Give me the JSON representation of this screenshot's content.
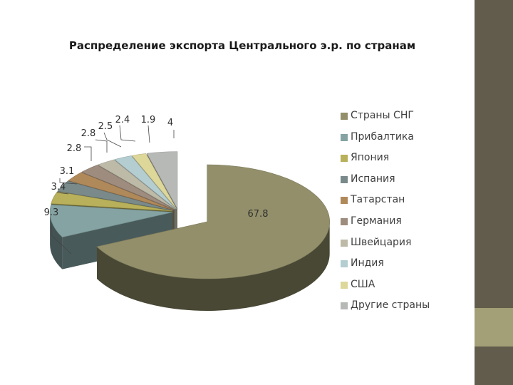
{
  "colors": {
    "side_bar": "#615c4b",
    "side_band": "#a39f76"
  },
  "chart_data": {
    "type": "pie",
    "title": "Распределение экспорта Центрального э.р. по странам",
    "legend_position": "right",
    "categories": [
      "Страны СНГ",
      "Прибалтика",
      "Япония",
      "Испания",
      "Татарстан",
      "Германия",
      "Швейцария",
      "Индия",
      "США",
      "Другие страны"
    ],
    "values": [
      67.8,
      9.3,
      3.4,
      3.1,
      2.8,
      2.8,
      2.5,
      2.4,
      1.9,
      4
    ],
    "labels": [
      "67.8",
      "9.3",
      "3.4",
      "3.1",
      "2.8",
      "2.8",
      "2.5",
      "2.4",
      "1.9",
      "4"
    ],
    "colors": [
      "#928f6a",
      "#85a3a3",
      "#b8b05a",
      "#7a8a8a",
      "#b0895a",
      "#9e8c7e",
      "#bdbaa8",
      "#b4cdd0",
      "#ddd79a",
      "#b7b9b7"
    ]
  }
}
